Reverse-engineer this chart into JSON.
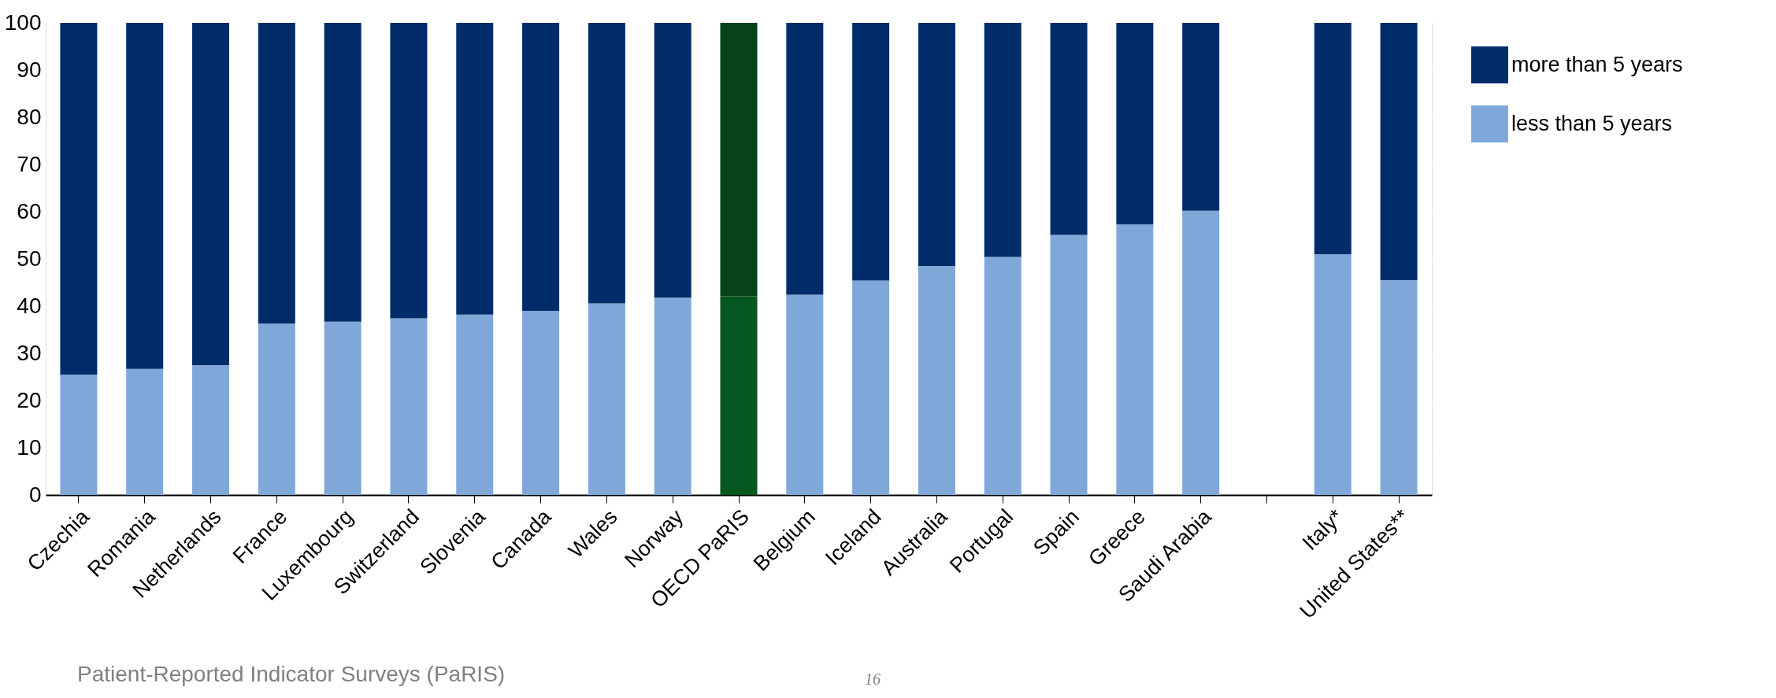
{
  "chart_data": {
    "type": "bar",
    "stacked": true,
    "categories": [
      "Czechia",
      "Romania",
      "Netherlands",
      "France",
      "Luxembourg",
      "Switzerland",
      "Slovenia",
      "Canada",
      "Wales",
      "Norway",
      "OECD PaRIS",
      "Belgium",
      "Iceland",
      "Australia",
      "Portugal",
      "Spain",
      "Greece",
      "Saudi Arabia",
      null,
      "Italy*",
      "United States**"
    ],
    "series": [
      {
        "name": "less than 5 years",
        "color": "#7fa8d9",
        "colors": [
          "#7fa8d9",
          "#7fa8d9",
          "#7fa8d9",
          "#7fa8d9",
          "#7fa8d9",
          "#7fa8d9",
          "#7fa8d9",
          "#7fa8d9",
          "#7fa8d9",
          "#7fa8d9",
          "#06561f",
          "#7fa8d9",
          "#7fa8d9",
          "#7fa8d9",
          "#7fa8d9",
          "#7fa8d9",
          "#7fa8d9",
          "#7fa8d9",
          "#7fa8d9",
          "#7fa8d9",
          "#7fa8d9"
        ],
        "values": [
          25.5,
          26.7,
          27.5,
          36.3,
          36.7,
          37.4,
          38.2,
          39.0,
          40.6,
          41.8,
          42.1,
          42.4,
          45.4,
          48.5,
          50.4,
          55.1,
          57.3,
          60.2,
          null,
          51.0,
          45.5
        ]
      },
      {
        "name": "more than 5 years",
        "color": "#002d69",
        "colors": [
          "#002d69",
          "#002d69",
          "#002d69",
          "#002d69",
          "#002d69",
          "#002d69",
          "#002d69",
          "#002d69",
          "#002d69",
          "#002d69",
          "#06421a",
          "#002d69",
          "#002d69",
          "#002d69",
          "#002d69",
          "#002d69",
          "#002d69",
          "#002d69",
          "#002d69",
          "#002d69",
          "#002d69"
        ],
        "values": [
          74.5,
          73.3,
          72.5,
          63.7,
          63.3,
          62.6,
          61.8,
          61.0,
          59.4,
          58.2,
          57.9,
          57.6,
          54.6,
          51.5,
          49.6,
          44.9,
          42.7,
          39.8,
          null,
          49.0,
          54.5
        ]
      }
    ],
    "ylim": [
      0,
      100
    ],
    "yticks": [
      0,
      10,
      20,
      30,
      40,
      50,
      60,
      70,
      80,
      90,
      100
    ],
    "grid": "y",
    "legend": "top right",
    "annotations": [
      "Patient-Reported Indicator Surveys (PaRIS)",
      "16"
    ]
  }
}
